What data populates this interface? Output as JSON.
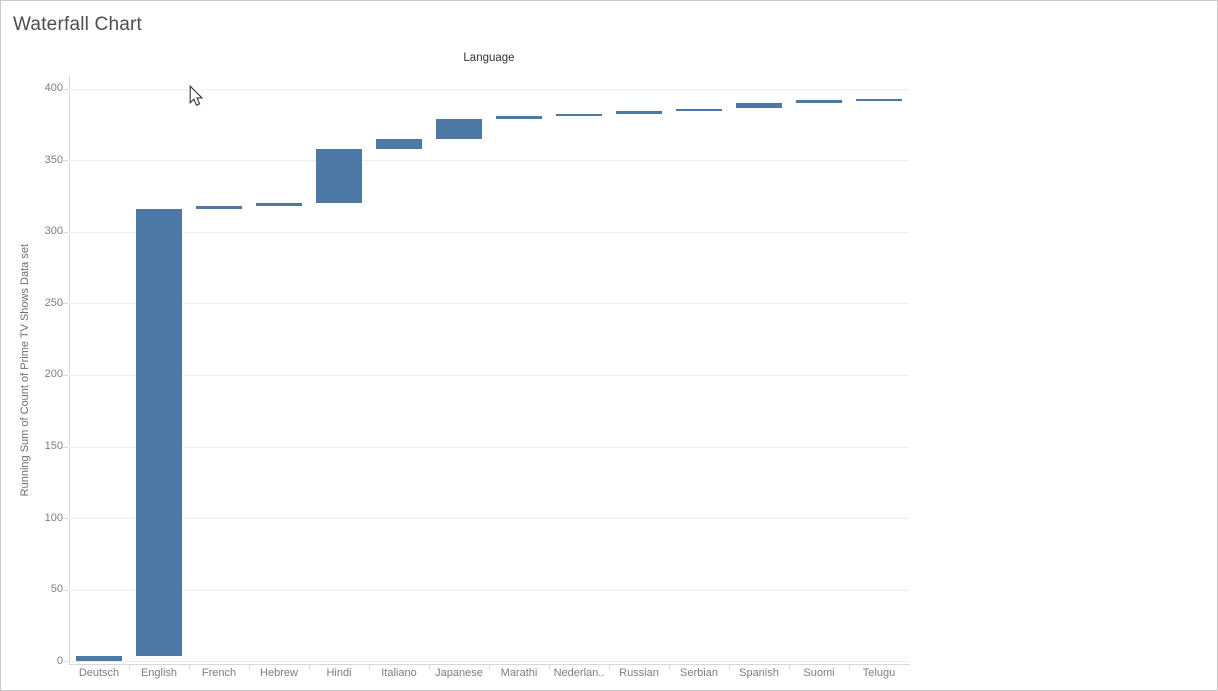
{
  "window": {
    "title": "Waterfall Chart"
  },
  "icons": {
    "cursor": "arrow-pointer"
  },
  "colors": {
    "bar": "#4e79a7",
    "grid": "#ededed",
    "axis": "#d7d7d7",
    "tick_text": "#7d7d7d",
    "title_text": "#4e4e4e",
    "header_text": "#333333",
    "border": "#c8c8c8"
  },
  "chart_data": {
    "type": "bar",
    "variant": "waterfall",
    "title": "Language",
    "xlabel": "Language",
    "ylabel": "Running Sum of Count of Prime TV Shows Data set",
    "categories": [
      "Deutsch",
      "English",
      "French",
      "Hebrew",
      "Hindi",
      "Italiano",
      "Japanese",
      "Marathi",
      "Nederlan..",
      "Russian",
      "Serbian",
      "Spanish",
      "Suomi",
      "Telugu"
    ],
    "counts": [
      4,
      312,
      2,
      2,
      38,
      7,
      14,
      2,
      1,
      2,
      2,
      4,
      2,
      1
    ],
    "running_totals": [
      4,
      316,
      318,
      320,
      358,
      365,
      379,
      381,
      382,
      384,
      386,
      390,
      392,
      393
    ],
    "y_ticks": [
      0,
      50,
      100,
      150,
      200,
      250,
      300,
      350,
      400
    ],
    "ylim": [
      -1.8,
      408.7
    ],
    "grid": true,
    "legend": false,
    "bar_color": "#4e79a7"
  }
}
